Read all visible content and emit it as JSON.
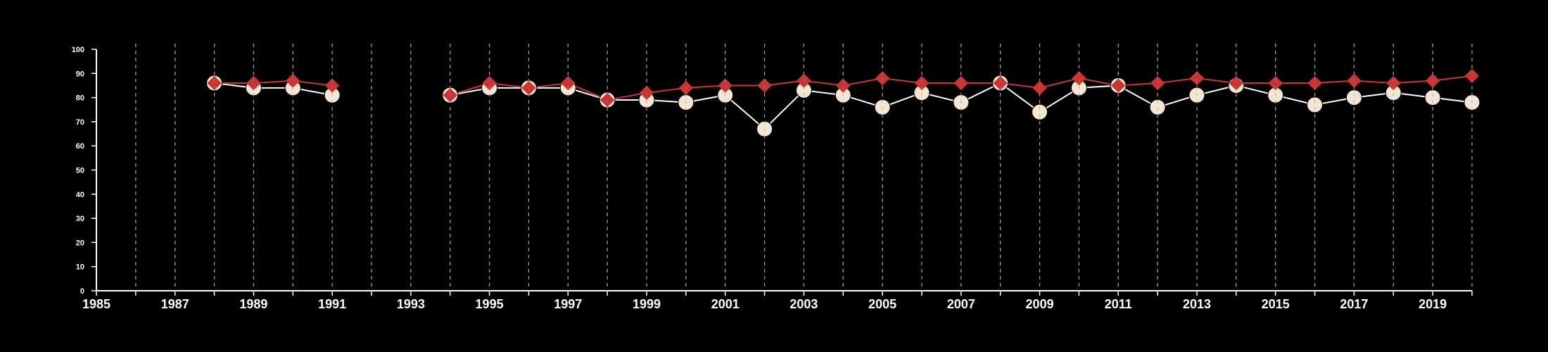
{
  "colors": {
    "background": "#000000",
    "axis": "#ffffff",
    "grid": "#bbbbbb",
    "series_a_line": "#ffffff",
    "series_a_marker": "#f5e6d3",
    "series_b": "#cc3333"
  },
  "chart_data": {
    "type": "line",
    "title": "",
    "xlabel": "",
    "ylabel": "",
    "xlim": [
      1985,
      2020
    ],
    "ylim": [
      0,
      100
    ],
    "x_tick_labels": [
      "1985",
      "1987",
      "1989",
      "1991",
      "1993",
      "1995",
      "1997",
      "1999",
      "2001",
      "2003",
      "2005",
      "2007",
      "2009",
      "2011",
      "2013",
      "2015",
      "2017",
      "2019"
    ],
    "y_tick_labels": [
      "0",
      "10",
      "20",
      "30",
      "40",
      "50",
      "60",
      "70",
      "80",
      "90",
      "100"
    ],
    "grid": "vertical dashed lines at each year",
    "legend": "none",
    "series": [
      {
        "marker": "circle",
        "color_key": "series_a_marker",
        "points": [
          {
            "x": 1988,
            "y": 86
          },
          {
            "x": 1989,
            "y": 84
          },
          {
            "x": 1990,
            "y": 84
          },
          {
            "x": 1991,
            "y": 81
          },
          {
            "x": 1994,
            "y": 81
          },
          {
            "x": 1995,
            "y": 84
          },
          {
            "x": 1996,
            "y": 84
          },
          {
            "x": 1997,
            "y": 84
          },
          {
            "x": 1998,
            "y": 79
          },
          {
            "x": 1999,
            "y": 79
          },
          {
            "x": 2000,
            "y": 78
          },
          {
            "x": 2001,
            "y": 81
          },
          {
            "x": 2002,
            "y": 67
          },
          {
            "x": 2003,
            "y": 83
          },
          {
            "x": 2004,
            "y": 81
          },
          {
            "x": 2005,
            "y": 76
          },
          {
            "x": 2006,
            "y": 82
          },
          {
            "x": 2007,
            "y": 78
          },
          {
            "x": 2008,
            "y": 86
          },
          {
            "x": 2009,
            "y": 74
          },
          {
            "x": 2010,
            "y": 84
          },
          {
            "x": 2011,
            "y": 85
          },
          {
            "x": 2012,
            "y": 76
          },
          {
            "x": 2013,
            "y": 81
          },
          {
            "x": 2014,
            "y": 85
          },
          {
            "x": 2015,
            "y": 81
          },
          {
            "x": 2016,
            "y": 77
          },
          {
            "x": 2017,
            "y": 80
          },
          {
            "x": 2018,
            "y": 82
          },
          {
            "x": 2019,
            "y": 80
          },
          {
            "x": 2020,
            "y": 78
          }
        ]
      },
      {
        "marker": "diamond",
        "color_key": "series_b",
        "points": [
          {
            "x": 1988,
            "y": 86
          },
          {
            "x": 1989,
            "y": 86
          },
          {
            "x": 1990,
            "y": 87
          },
          {
            "x": 1991,
            "y": 85
          },
          {
            "x": 1994,
            "y": 81
          },
          {
            "x": 1995,
            "y": 86
          },
          {
            "x": 1996,
            "y": 84
          },
          {
            "x": 1997,
            "y": 86
          },
          {
            "x": 1998,
            "y": 79
          },
          {
            "x": 1999,
            "y": 82
          },
          {
            "x": 2000,
            "y": 84
          },
          {
            "x": 2001,
            "y": 85
          },
          {
            "x": 2002,
            "y": 85
          },
          {
            "x": 2003,
            "y": 87
          },
          {
            "x": 2004,
            "y": 85
          },
          {
            "x": 2005,
            "y": 88
          },
          {
            "x": 2006,
            "y": 86
          },
          {
            "x": 2007,
            "y": 86
          },
          {
            "x": 2008,
            "y": 86
          },
          {
            "x": 2009,
            "y": 84
          },
          {
            "x": 2010,
            "y": 88
          },
          {
            "x": 2011,
            "y": 85
          },
          {
            "x": 2012,
            "y": 86
          },
          {
            "x": 2013,
            "y": 88
          },
          {
            "x": 2014,
            "y": 86
          },
          {
            "x": 2015,
            "y": 86
          },
          {
            "x": 2016,
            "y": 86
          },
          {
            "x": 2017,
            "y": 87
          },
          {
            "x": 2018,
            "y": 86
          },
          {
            "x": 2019,
            "y": 87
          },
          {
            "x": 2020,
            "y": 89
          }
        ]
      }
    ]
  }
}
